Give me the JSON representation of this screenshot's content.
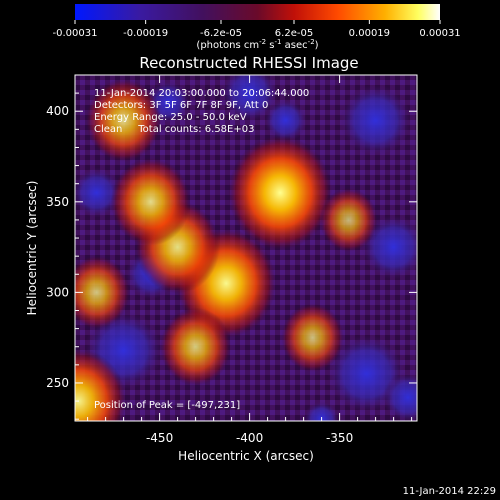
{
  "chart_data": {
    "type": "heatmap",
    "title": "Reconstructed RHESSI Image",
    "xlabel": "Heliocentric X (arcsec)",
    "ylabel": "Heliocentric Y (arcsec)",
    "xlim": [
      -497,
      -307
    ],
    "ylim": [
      229,
      420
    ],
    "xticks": [
      -450,
      -400,
      -350
    ],
    "xtick_labels": [
      "-450",
      "-400",
      "-350"
    ],
    "yticks": [
      250,
      300,
      350,
      400
    ],
    "ytick_labels": [
      "250",
      "300",
      "350",
      "400"
    ],
    "colorbar": {
      "ticks": [
        -0.00031,
        -0.00019,
        -6.2e-05,
        6.2e-05,
        0.00019,
        0.00031
      ],
      "tick_labels": [
        "-0.00031",
        "-0.00019",
        "-6.2e-05",
        "6.2e-05",
        "0.00019",
        "0.00031"
      ],
      "range": [
        -0.00031,
        0.00031
      ],
      "unit_label": "(photons cm-2 s-1 asec-2)",
      "colormap": "blue-purple-red-orange-yellow-white"
    },
    "annotations": [
      "11-Jan-2014 20:03:00.000 to 20:06:44.000",
      "Detectors: 3F 5F 6F 7F 8F 9F, Att 0",
      "Energy Range: 25.0 - 50.0 keV",
      "Clean     Total counts: 6.58E+03"
    ],
    "peak_label": "Position of Peak = [-497,231]",
    "sources": [
      {
        "x": -383,
        "y": 355,
        "intensity": 0.00031
      },
      {
        "x": -413,
        "y": 305,
        "intensity": 0.00029
      },
      {
        "x": -440,
        "y": 325,
        "intensity": 0.00022
      },
      {
        "x": -455,
        "y": 350,
        "intensity": 0.0002
      },
      {
        "x": -470,
        "y": 395,
        "intensity": 0.00018
      },
      {
        "x": -430,
        "y": 270,
        "intensity": 0.00016
      },
      {
        "x": -485,
        "y": 300,
        "intensity": 0.00014
      },
      {
        "x": -365,
        "y": 275,
        "intensity": 0.00012
      },
      {
        "x": -495,
        "y": 240,
        "intensity": 0.00027
      },
      {
        "x": -345,
        "y": 340,
        "intensity": 0.0001
      }
    ],
    "grid": false
  },
  "footer": {
    "timestamp": "11-Jan-2014 22:29"
  },
  "colors": {
    "background": "#000000",
    "text": "#ffffff"
  }
}
